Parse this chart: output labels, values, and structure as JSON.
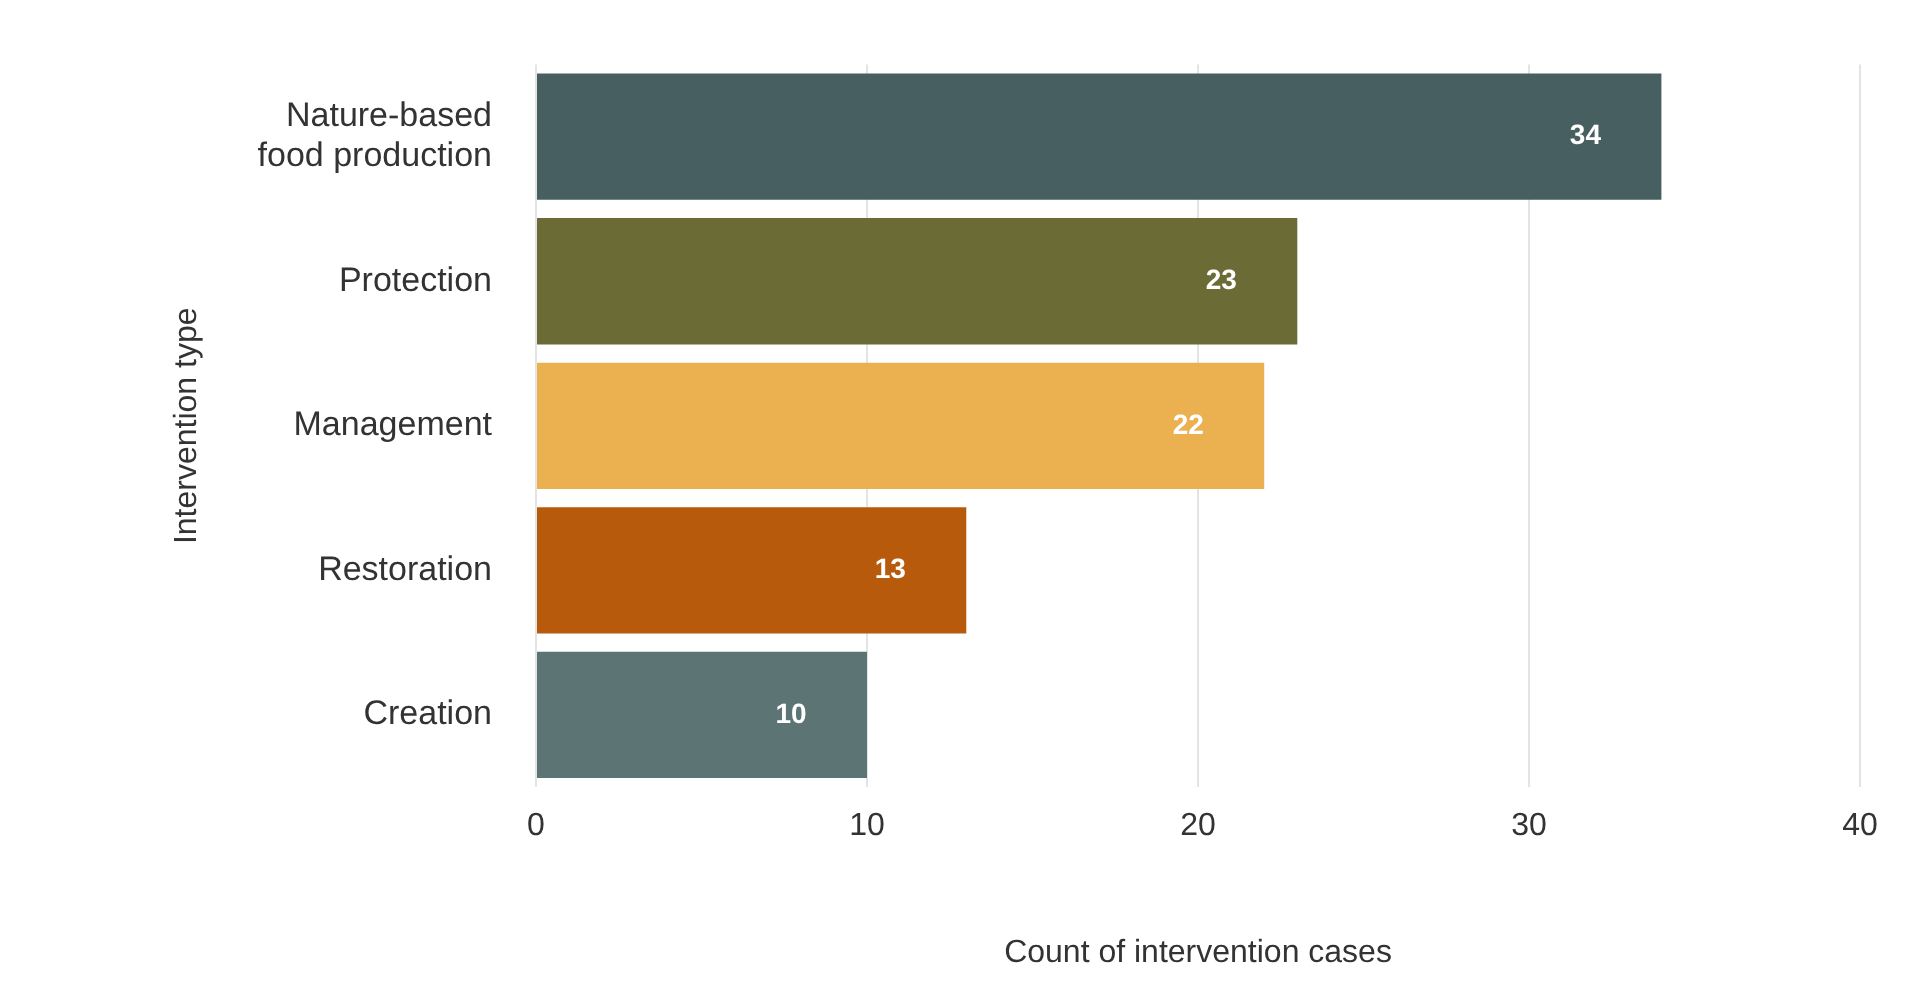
{
  "chart_data": {
    "type": "bar",
    "orientation": "horizontal",
    "xlabel": "Count of intervention cases",
    "ylabel": "Intervention type",
    "categories": [
      "Nature-based food production",
      "Protection",
      "Management",
      "Restoration",
      "Creation"
    ],
    "values": [
      34,
      23,
      22,
      13,
      10
    ],
    "colors": [
      "#475f60",
      "#6b6b35",
      "#ebb04f",
      "#b85a0c",
      "#5c7474"
    ],
    "xlim": [
      0,
      40
    ],
    "xticks": [
      0,
      10,
      20,
      30,
      40
    ],
    "grid": "x",
    "data_labels": true,
    "legend": false
  }
}
